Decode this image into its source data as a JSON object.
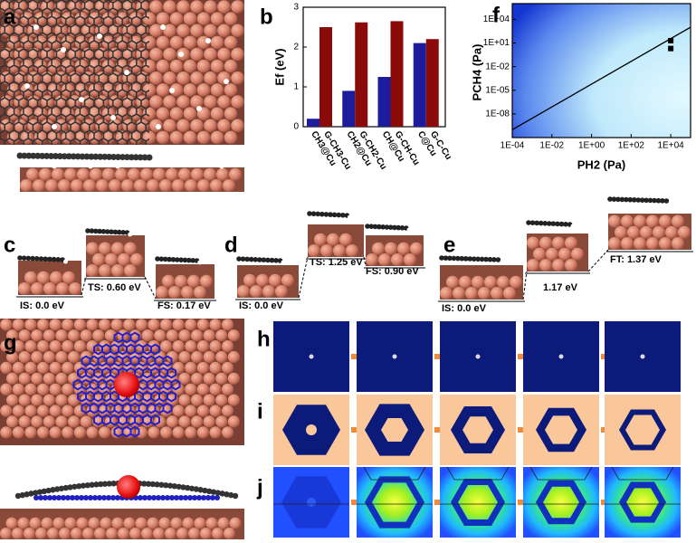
{
  "panel_labels": [
    "a",
    "b",
    "c",
    "d",
    "e",
    "f",
    "g",
    "h",
    "i",
    "j"
  ],
  "chart_data": [
    {
      "type": "bar",
      "y_label": "Ef (eV)",
      "ylim": [
        0,
        3
      ],
      "yticks": [
        0,
        1,
        2,
        3
      ],
      "series": [
        {
          "color": "#1c1c9c",
          "labels": [
            "CH3@Cu",
            "CH2@Cu",
            "CH@Cu",
            "C@Cu"
          ],
          "values": [
            0.2,
            0.9,
            1.25,
            2.1
          ]
        },
        {
          "color": "#8b0a0a",
          "labels": [
            "G-CH3-Cu",
            "G-CH2-Cu",
            "G-CH-Cu",
            "G-C-Cu"
          ],
          "values": [
            2.5,
            2.62,
            2.65,
            2.2
          ]
        }
      ]
    },
    {
      "type": "line",
      "log_x": true,
      "log_y": true,
      "x_label": "PH2 (Pa)",
      "y_label": "PCH4 (Pa)",
      "xlim": [
        0.0001,
        100000
      ],
      "ylim": [
        1e-11,
        1000000
      ],
      "xticks": [
        {
          "value": 0.0001,
          "label": "1E-04"
        },
        {
          "value": 0.01,
          "label": "1E-02"
        },
        {
          "value": 1,
          "label": "1E+00"
        },
        {
          "value": 100,
          "label": "1E+02"
        },
        {
          "value": 10000,
          "label": "1E+04"
        }
      ],
      "yticks": [
        {
          "value": 1e-08,
          "label": "1E-08"
        },
        {
          "value": 1e-05,
          "label": "1E-05"
        },
        {
          "value": 0.01,
          "label": "1E-02"
        },
        {
          "value": 10,
          "label": "1E+01"
        },
        {
          "value": 10000,
          "label": "1E+04"
        }
      ],
      "series": [
        {
          "color": "#000000",
          "x": [
            0.0001,
            100000
          ],
          "values": [
            1e-10,
            1000
          ]
        }
      ],
      "points": {
        "color": "#000000",
        "x": [
          10000,
          10000
        ],
        "values": [
          20,
          2
        ]
      }
    }
  ],
  "energy_labels": [
    "IS: 0.0 eV",
    "TS: 0.60 eV",
    "FS: 0.17 eV",
    "IS: 0.0 eV",
    "TS: 1.25 eV",
    "FS: 0.90 eV",
    "IS: 0.0 eV",
    "1.17 eV",
    "FT: 1.37 eV"
  ]
}
